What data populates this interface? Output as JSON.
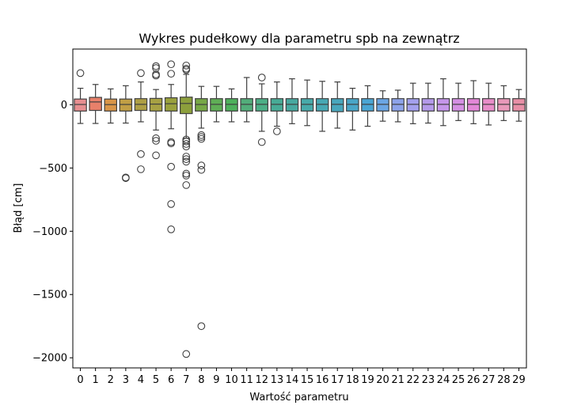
{
  "chart_data": {
    "type": "box",
    "title": "Wykres pudełkowy dla parametru spb na zewnątrz",
    "xlabel": "Wartość parametru",
    "ylabel": "Błąd [cm]",
    "ylim": [
      -2080,
      440
    ],
    "yticks": [
      0,
      -500,
      -1000,
      -1500,
      -2000
    ],
    "ytick_labels": [
      "0",
      "−500",
      "−1000",
      "−1500",
      "−2000"
    ],
    "grid": false,
    "legend": "none",
    "categories": [
      "0",
      "1",
      "2",
      "3",
      "4",
      "5",
      "6",
      "7",
      "8",
      "9",
      "10",
      "11",
      "12",
      "13",
      "14",
      "15",
      "16",
      "17",
      "18",
      "19",
      "20",
      "21",
      "22",
      "23",
      "24",
      "25",
      "26",
      "27",
      "28",
      "29"
    ],
    "colors": [
      "#e78f91",
      "#e8806a",
      "#d99548",
      "#c19f45",
      "#ae9f45",
      "#a7a143",
      "#9aa13d",
      "#8c9f3c",
      "#77a846",
      "#5fae56",
      "#4eb15c",
      "#52ad7a",
      "#4caf86",
      "#47ab96",
      "#47a9a0",
      "#47aaaa",
      "#47a8b4",
      "#48a7bd",
      "#49a6c8",
      "#4aa6d4",
      "#6ba6e4",
      "#8da3ea",
      "#a4a0ed",
      "#b49aea",
      "#c596ea",
      "#d590e3",
      "#e287d7",
      "#e88dc9",
      "#e899b9",
      "#e78fa6"
    ],
    "boxes": [
      {
        "q1": -50,
        "median": 2,
        "q3": 45,
        "whisker_low": -148,
        "whisker_high": 130,
        "outliers": [
          250
        ]
      },
      {
        "q1": -45,
        "median": 22,
        "q3": 58,
        "whisker_low": -148,
        "whisker_high": 160,
        "outliers": []
      },
      {
        "q1": -50,
        "median": 1,
        "q3": 45,
        "whisker_low": -145,
        "whisker_high": 125,
        "outliers": []
      },
      {
        "q1": -50,
        "median": 2,
        "q3": 45,
        "whisker_low": -145,
        "whisker_high": 150,
        "outliers": [
          -575,
          -580
        ]
      },
      {
        "q1": -45,
        "median": 3,
        "q3": 48,
        "whisker_low": -135,
        "whisker_high": 180,
        "outliers": [
          250,
          -390,
          -510
        ]
      },
      {
        "q1": -50,
        "median": 5,
        "q3": 50,
        "whisker_low": -200,
        "whisker_high": 120,
        "outliers": [
          305,
          290,
          240,
          230,
          -265,
          -285,
          -400
        ]
      },
      {
        "q1": -50,
        "median": 8,
        "q3": 55,
        "whisker_low": -190,
        "whisker_high": 160,
        "outliers": [
          320,
          245,
          -295,
          -305,
          -490,
          -785,
          -985
        ]
      },
      {
        "q1": -70,
        "median": 10,
        "q3": 60,
        "whisker_low": -265,
        "whisker_high": 240,
        "outliers": [
          310,
          285,
          275,
          -275,
          -290,
          -310,
          -330,
          -410,
          -430,
          -450,
          -545,
          -560,
          -635,
          -1970
        ]
      },
      {
        "q1": -50,
        "median": 2,
        "q3": 48,
        "whisker_low": -185,
        "whisker_high": 145,
        "outliers": [
          -240,
          -255,
          -270,
          -480,
          -515,
          -1750
        ]
      },
      {
        "q1": -50,
        "median": 3,
        "q3": 48,
        "whisker_low": -135,
        "whisker_high": 145,
        "outliers": []
      },
      {
        "q1": -50,
        "median": 3,
        "q3": 48,
        "whisker_low": -135,
        "whisker_high": 125,
        "outliers": []
      },
      {
        "q1": -50,
        "median": 3,
        "q3": 48,
        "whisker_low": -135,
        "whisker_high": 215,
        "outliers": []
      },
      {
        "q1": -50,
        "median": 3,
        "q3": 48,
        "whisker_low": -210,
        "whisker_high": 165,
        "outliers": [
          215,
          -295
        ]
      },
      {
        "q1": -50,
        "median": 3,
        "q3": 48,
        "whisker_low": -170,
        "whisker_high": 180,
        "outliers": [
          -210
        ]
      },
      {
        "q1": -50,
        "median": 3,
        "q3": 48,
        "whisker_low": -150,
        "whisker_high": 205,
        "outliers": []
      },
      {
        "q1": -50,
        "median": 3,
        "q3": 48,
        "whisker_low": -165,
        "whisker_high": 195,
        "outliers": []
      },
      {
        "q1": -50,
        "median": 3,
        "q3": 48,
        "whisker_low": -210,
        "whisker_high": 185,
        "outliers": []
      },
      {
        "q1": -55,
        "median": 3,
        "q3": 48,
        "whisker_low": -185,
        "whisker_high": 180,
        "outliers": []
      },
      {
        "q1": -50,
        "median": 3,
        "q3": 48,
        "whisker_low": -200,
        "whisker_high": 130,
        "outliers": []
      },
      {
        "q1": -50,
        "median": 3,
        "q3": 48,
        "whisker_low": -170,
        "whisker_high": 150,
        "outliers": []
      },
      {
        "q1": -50,
        "median": 3,
        "q3": 48,
        "whisker_low": -130,
        "whisker_high": 110,
        "outliers": []
      },
      {
        "q1": -50,
        "median": 3,
        "q3": 48,
        "whisker_low": -135,
        "whisker_high": 115,
        "outliers": []
      },
      {
        "q1": -50,
        "median": 3,
        "q3": 48,
        "whisker_low": -150,
        "whisker_high": 170,
        "outliers": []
      },
      {
        "q1": -50,
        "median": 3,
        "q3": 48,
        "whisker_low": -145,
        "whisker_high": 170,
        "outliers": []
      },
      {
        "q1": -50,
        "median": 3,
        "q3": 48,
        "whisker_low": -165,
        "whisker_high": 205,
        "outliers": []
      },
      {
        "q1": -50,
        "median": 3,
        "q3": 48,
        "whisker_low": -125,
        "whisker_high": 170,
        "outliers": []
      },
      {
        "q1": -50,
        "median": 3,
        "q3": 48,
        "whisker_low": -150,
        "whisker_high": 190,
        "outliers": []
      },
      {
        "q1": -50,
        "median": 3,
        "q3": 48,
        "whisker_low": -160,
        "whisker_high": 170,
        "outliers": []
      },
      {
        "q1": -50,
        "median": 3,
        "q3": 48,
        "whisker_low": -125,
        "whisker_high": 150,
        "outliers": []
      },
      {
        "q1": -50,
        "median": 3,
        "q3": 48,
        "whisker_low": -130,
        "whisker_high": 120,
        "outliers": []
      }
    ]
  }
}
